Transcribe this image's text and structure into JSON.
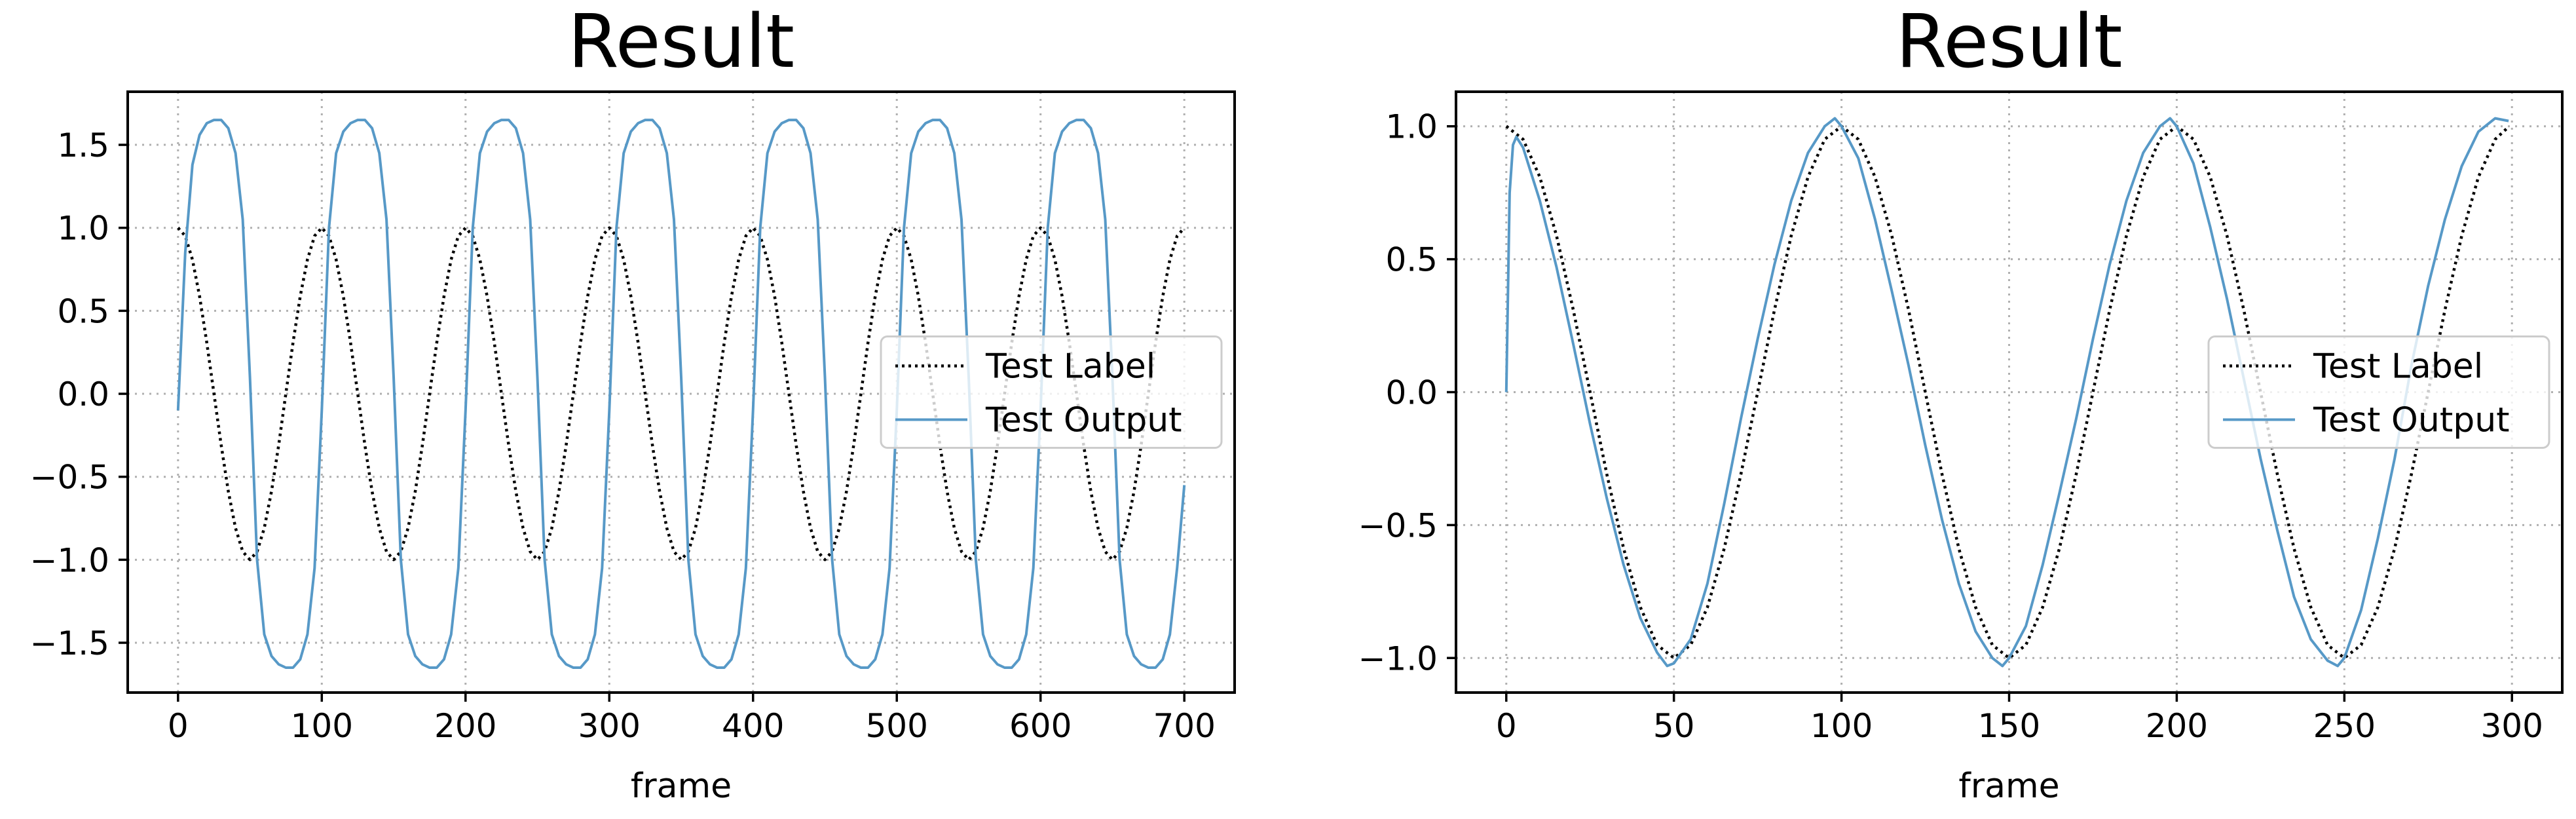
{
  "chart_data": [
    {
      "type": "line",
      "title": "Result",
      "xlabel": "frame",
      "ylabel": "",
      "xlim": [
        -35,
        735
      ],
      "ylim": [
        -1.8,
        1.82
      ],
      "xticks": [
        0,
        100,
        200,
        300,
        400,
        500,
        600,
        700
      ],
      "xtick_labels": [
        "0",
        "100",
        "200",
        "300",
        "400",
        "500",
        "600",
        "700"
      ],
      "yticks": [
        1.5,
        1.0,
        0.5,
        0.0,
        -0.5,
        -1.0,
        -1.5
      ],
      "ytick_labels": [
        "1.5",
        "1.0",
        "0.5",
        "0.0",
        "−0.5",
        "−1.0",
        "−1.5"
      ],
      "grid": true,
      "legend_position": "center-right",
      "series": [
        {
          "name": "Test Label",
          "color": "#000000",
          "style": "dotted",
          "x": [
            0,
            5,
            10,
            15,
            20,
            25,
            30,
            35,
            40,
            45,
            50,
            55,
            60,
            65,
            70,
            75,
            80,
            85,
            90,
            95,
            100,
            105,
            110,
            115,
            120,
            125,
            130,
            135,
            140,
            145,
            150,
            155,
            160,
            165,
            170,
            175,
            180,
            185,
            190,
            195,
            200,
            205,
            210,
            215,
            220,
            225,
            230,
            235,
            240,
            245,
            250,
            255,
            260,
            265,
            270,
            275,
            280,
            285,
            290,
            295,
            300,
            305,
            310,
            315,
            320,
            325,
            330,
            335,
            340,
            345,
            350,
            355,
            360,
            365,
            370,
            375,
            380,
            385,
            390,
            395,
            400,
            405,
            410,
            415,
            420,
            425,
            430,
            435,
            440,
            445,
            450,
            455,
            460,
            465,
            470,
            475,
            480,
            485,
            490,
            495,
            500,
            505,
            510,
            515,
            520,
            525,
            530,
            535,
            540,
            545,
            550,
            555,
            560,
            565,
            570,
            575,
            580,
            585,
            590,
            595,
            600,
            605,
            610,
            615,
            620,
            625,
            630,
            635,
            640,
            645,
            650,
            655,
            660,
            665,
            670,
            675,
            680,
            685,
            690,
            695,
            700
          ],
          "y": [
            1.0,
            0.951,
            0.809,
            0.588,
            0.309,
            0.0,
            -0.309,
            -0.588,
            -0.809,
            -0.951,
            -1.0,
            -0.951,
            -0.809,
            -0.588,
            -0.309,
            0.0,
            0.309,
            0.588,
            0.809,
            0.951,
            1.0,
            0.951,
            0.809,
            0.588,
            0.309,
            0.0,
            -0.309,
            -0.588,
            -0.809,
            -0.951,
            -1.0,
            -0.951,
            -0.809,
            -0.588,
            -0.309,
            0.0,
            0.309,
            0.588,
            0.809,
            0.951,
            1.0,
            0.951,
            0.809,
            0.588,
            0.309,
            0.0,
            -0.309,
            -0.588,
            -0.809,
            -0.951,
            -1.0,
            -0.951,
            -0.809,
            -0.588,
            -0.309,
            0.0,
            0.309,
            0.588,
            0.809,
            0.951,
            1.0,
            0.951,
            0.809,
            0.588,
            0.309,
            0.0,
            -0.309,
            -0.588,
            -0.809,
            -0.951,
            -1.0,
            -0.951,
            -0.809,
            -0.588,
            -0.309,
            0.0,
            0.309,
            0.588,
            0.809,
            0.951,
            1.0,
            0.951,
            0.809,
            0.588,
            0.309,
            0.0,
            -0.309,
            -0.588,
            -0.809,
            -0.951,
            -1.0,
            -0.951,
            -0.809,
            -0.588,
            -0.309,
            0.0,
            0.309,
            0.588,
            0.809,
            0.951,
            1.0,
            0.951,
            0.809,
            0.588,
            0.309,
            0.0,
            -0.309,
            -0.588,
            -0.809,
            -0.951,
            -1.0,
            -0.951,
            -0.809,
            -0.588,
            -0.309,
            0.0,
            0.309,
            0.588,
            0.809,
            0.951,
            1.0,
            0.951,
            0.809,
            0.588,
            0.309,
            0.0,
            -0.309,
            -0.588,
            -0.809,
            -0.951,
            -1.0,
            -0.951,
            -0.809,
            -0.588,
            -0.309,
            0.0,
            0.309,
            0.588,
            0.809,
            0.951,
            1.0
          ]
        },
        {
          "name": "Test Output",
          "color": "#5799c7",
          "style": "solid",
          "x": [
            0,
            5,
            10,
            15,
            20,
            25,
            30,
            35,
            40,
            45,
            50,
            55,
            60,
            65,
            70,
            75,
            80,
            85,
            90,
            95,
            100,
            105,
            110,
            115,
            120,
            125,
            130,
            135,
            140,
            145,
            150,
            155,
            160,
            165,
            170,
            175,
            180,
            185,
            190,
            195,
            200,
            205,
            210,
            215,
            220,
            225,
            230,
            235,
            240,
            245,
            250,
            255,
            260,
            265,
            270,
            275,
            280,
            285,
            290,
            295,
            300,
            305,
            310,
            315,
            320,
            325,
            330,
            335,
            340,
            345,
            350,
            355,
            360,
            365,
            370,
            375,
            380,
            385,
            390,
            395,
            400,
            405,
            410,
            415,
            420,
            425,
            430,
            435,
            440,
            445,
            450,
            455,
            460,
            465,
            470,
            475,
            480,
            485,
            490,
            495,
            500,
            505,
            510,
            515,
            520,
            525,
            530,
            535,
            540,
            545,
            550,
            555,
            560,
            565,
            570,
            575,
            580,
            585,
            590,
            595,
            600,
            605,
            610,
            615,
            620,
            625,
            630,
            635,
            640,
            645,
            650,
            655,
            660,
            665,
            670,
            675,
            680,
            685,
            690,
            695,
            700
          ],
          "y": [
            -0.1,
            0.85,
            1.38,
            1.56,
            1.63,
            1.65,
            1.65,
            1.6,
            1.45,
            1.05,
            0.1,
            -1.0,
            -1.45,
            -1.58,
            -1.63,
            -1.65,
            -1.65,
            -1.6,
            -1.45,
            -1.05,
            -0.1,
            1.0,
            1.45,
            1.58,
            1.63,
            1.65,
            1.65,
            1.6,
            1.45,
            1.05,
            0.1,
            -1.0,
            -1.45,
            -1.58,
            -1.63,
            -1.65,
            -1.65,
            -1.6,
            -1.45,
            -1.05,
            -0.1,
            1.0,
            1.45,
            1.58,
            1.63,
            1.65,
            1.65,
            1.6,
            1.45,
            1.05,
            0.1,
            -1.0,
            -1.45,
            -1.58,
            -1.63,
            -1.65,
            -1.65,
            -1.6,
            -1.45,
            -1.05,
            -0.1,
            1.0,
            1.45,
            1.58,
            1.63,
            1.65,
            1.65,
            1.6,
            1.45,
            1.05,
            0.1,
            -1.0,
            -1.45,
            -1.58,
            -1.63,
            -1.65,
            -1.65,
            -1.6,
            -1.45,
            -1.05,
            -0.1,
            1.0,
            1.45,
            1.58,
            1.63,
            1.65,
            1.65,
            1.6,
            1.45,
            1.05,
            0.1,
            -1.0,
            -1.45,
            -1.58,
            -1.63,
            -1.65,
            -1.65,
            -1.6,
            -1.45,
            -1.05,
            -0.1,
            1.0,
            1.45,
            1.58,
            1.63,
            1.65,
            1.65,
            1.6,
            1.45,
            1.05,
            0.1,
            -1.0,
            -1.45,
            -1.58,
            -1.63,
            -1.65,
            -1.65,
            -1.6,
            -1.45,
            -1.05,
            -0.1,
            1.0,
            1.45,
            1.58,
            1.63,
            1.65,
            1.65,
            1.6,
            1.45,
            1.05,
            0.1,
            -1.0,
            -1.45,
            -1.58,
            -1.63,
            -1.65,
            -1.65,
            -1.6,
            -1.45,
            -1.05,
            -0.55
          ]
        }
      ]
    },
    {
      "type": "line",
      "title": "Result",
      "xlabel": "frame",
      "ylabel": "",
      "xlim": [
        -15,
        315
      ],
      "ylim": [
        -1.13,
        1.13
      ],
      "xticks": [
        0,
        50,
        100,
        150,
        200,
        250,
        300
      ],
      "xtick_labels": [
        "0",
        "50",
        "100",
        "150",
        "200",
        "250",
        "300"
      ],
      "yticks": [
        1.0,
        0.5,
        0.0,
        -0.5,
        -1.0
      ],
      "ytick_labels": [
        "1.0",
        "0.5",
        "0.0",
        "−0.5",
        "−1.0"
      ],
      "grid": true,
      "legend_position": "center-right",
      "series": [
        {
          "name": "Test Label",
          "color": "#000000",
          "style": "dotted",
          "x": [
            0,
            5,
            10,
            15,
            20,
            25,
            30,
            35,
            40,
            45,
            50,
            55,
            60,
            65,
            70,
            75,
            80,
            85,
            90,
            95,
            100,
            105,
            110,
            115,
            120,
            125,
            130,
            135,
            140,
            145,
            150,
            155,
            160,
            165,
            170,
            175,
            180,
            185,
            190,
            195,
            200,
            205,
            210,
            215,
            220,
            225,
            230,
            235,
            240,
            245,
            250,
            255,
            260,
            265,
            270,
            275,
            280,
            285,
            290,
            295,
            299
          ],
          "y": [
            1.0,
            0.951,
            0.809,
            0.588,
            0.309,
            0.0,
            -0.309,
            -0.588,
            -0.809,
            -0.951,
            -1.0,
            -0.951,
            -0.809,
            -0.588,
            -0.309,
            0.0,
            0.309,
            0.588,
            0.809,
            0.951,
            1.0,
            0.951,
            0.809,
            0.588,
            0.309,
            0.0,
            -0.309,
            -0.588,
            -0.809,
            -0.951,
            -1.0,
            -0.951,
            -0.809,
            -0.588,
            -0.309,
            0.0,
            0.309,
            0.588,
            0.809,
            0.951,
            1.0,
            0.951,
            0.809,
            0.588,
            0.309,
            0.0,
            -0.309,
            -0.588,
            -0.809,
            -0.951,
            -1.0,
            -0.951,
            -0.809,
            -0.588,
            -0.309,
            0.0,
            0.309,
            0.588,
            0.809,
            0.951,
            0.998
          ]
        },
        {
          "name": "Test Output",
          "color": "#5799c7",
          "style": "solid",
          "x": [
            0,
            1,
            2,
            3,
            5,
            10,
            15,
            20,
            25,
            30,
            35,
            40,
            45,
            48,
            50,
            55,
            60,
            65,
            70,
            75,
            80,
            85,
            90,
            95,
            98,
            100,
            105,
            110,
            115,
            120,
            125,
            130,
            135,
            140,
            145,
            148,
            150,
            155,
            160,
            165,
            170,
            175,
            180,
            185,
            190,
            195,
            198,
            200,
            205,
            210,
            215,
            220,
            225,
            230,
            235,
            240,
            245,
            248,
            250,
            255,
            260,
            265,
            270,
            275,
            280,
            285,
            290,
            295,
            299
          ],
          "y": [
            0.0,
            0.75,
            0.93,
            0.96,
            0.92,
            0.72,
            0.47,
            0.18,
            -0.12,
            -0.4,
            -0.65,
            -0.85,
            -0.98,
            -1.03,
            -1.02,
            -0.93,
            -0.72,
            -0.42,
            -0.1,
            0.2,
            0.48,
            0.72,
            0.9,
            1.0,
            1.03,
            1.0,
            0.88,
            0.65,
            0.38,
            0.1,
            -0.2,
            -0.48,
            -0.72,
            -0.9,
            -1.0,
            -1.03,
            -1.0,
            -0.88,
            -0.65,
            -0.38,
            -0.1,
            0.2,
            0.48,
            0.72,
            0.9,
            1.0,
            1.03,
            1.0,
            0.86,
            0.62,
            0.35,
            0.05,
            -0.25,
            -0.52,
            -0.77,
            -0.93,
            -1.01,
            -1.03,
            -1.0,
            -0.82,
            -0.55,
            -0.25,
            0.1,
            0.4,
            0.65,
            0.85,
            0.98,
            1.03,
            1.02
          ]
        }
      ]
    }
  ]
}
